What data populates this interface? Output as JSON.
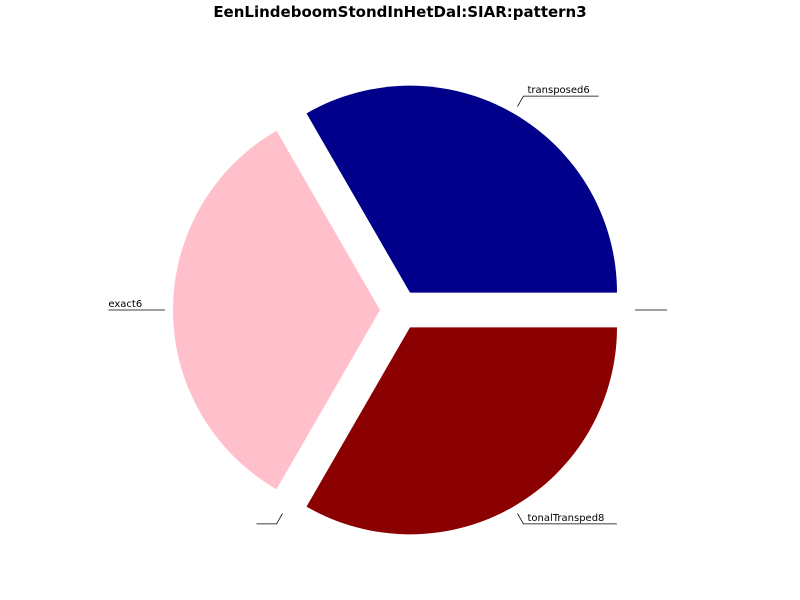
{
  "chart_data": {
    "type": "pie",
    "title": "EenLindeboomStondInHetDal:SIAR:pattern3",
    "slices": [
      {
        "label": "",
        "value": 0,
        "color": "#ffffff"
      },
      {
        "label": "transposed6",
        "value": 1,
        "color": "#00008b"
      },
      {
        "label": "exact6",
        "value": 1,
        "color": "#ffc0cb"
      },
      {
        "label": "",
        "value": 0,
        "color": "#ffffff"
      },
      {
        "label": "tonalTransped8",
        "value": 1,
        "color": "#8b0000"
      }
    ],
    "explode": true,
    "start_angle": 0,
    "direction": "counterclockwise"
  }
}
